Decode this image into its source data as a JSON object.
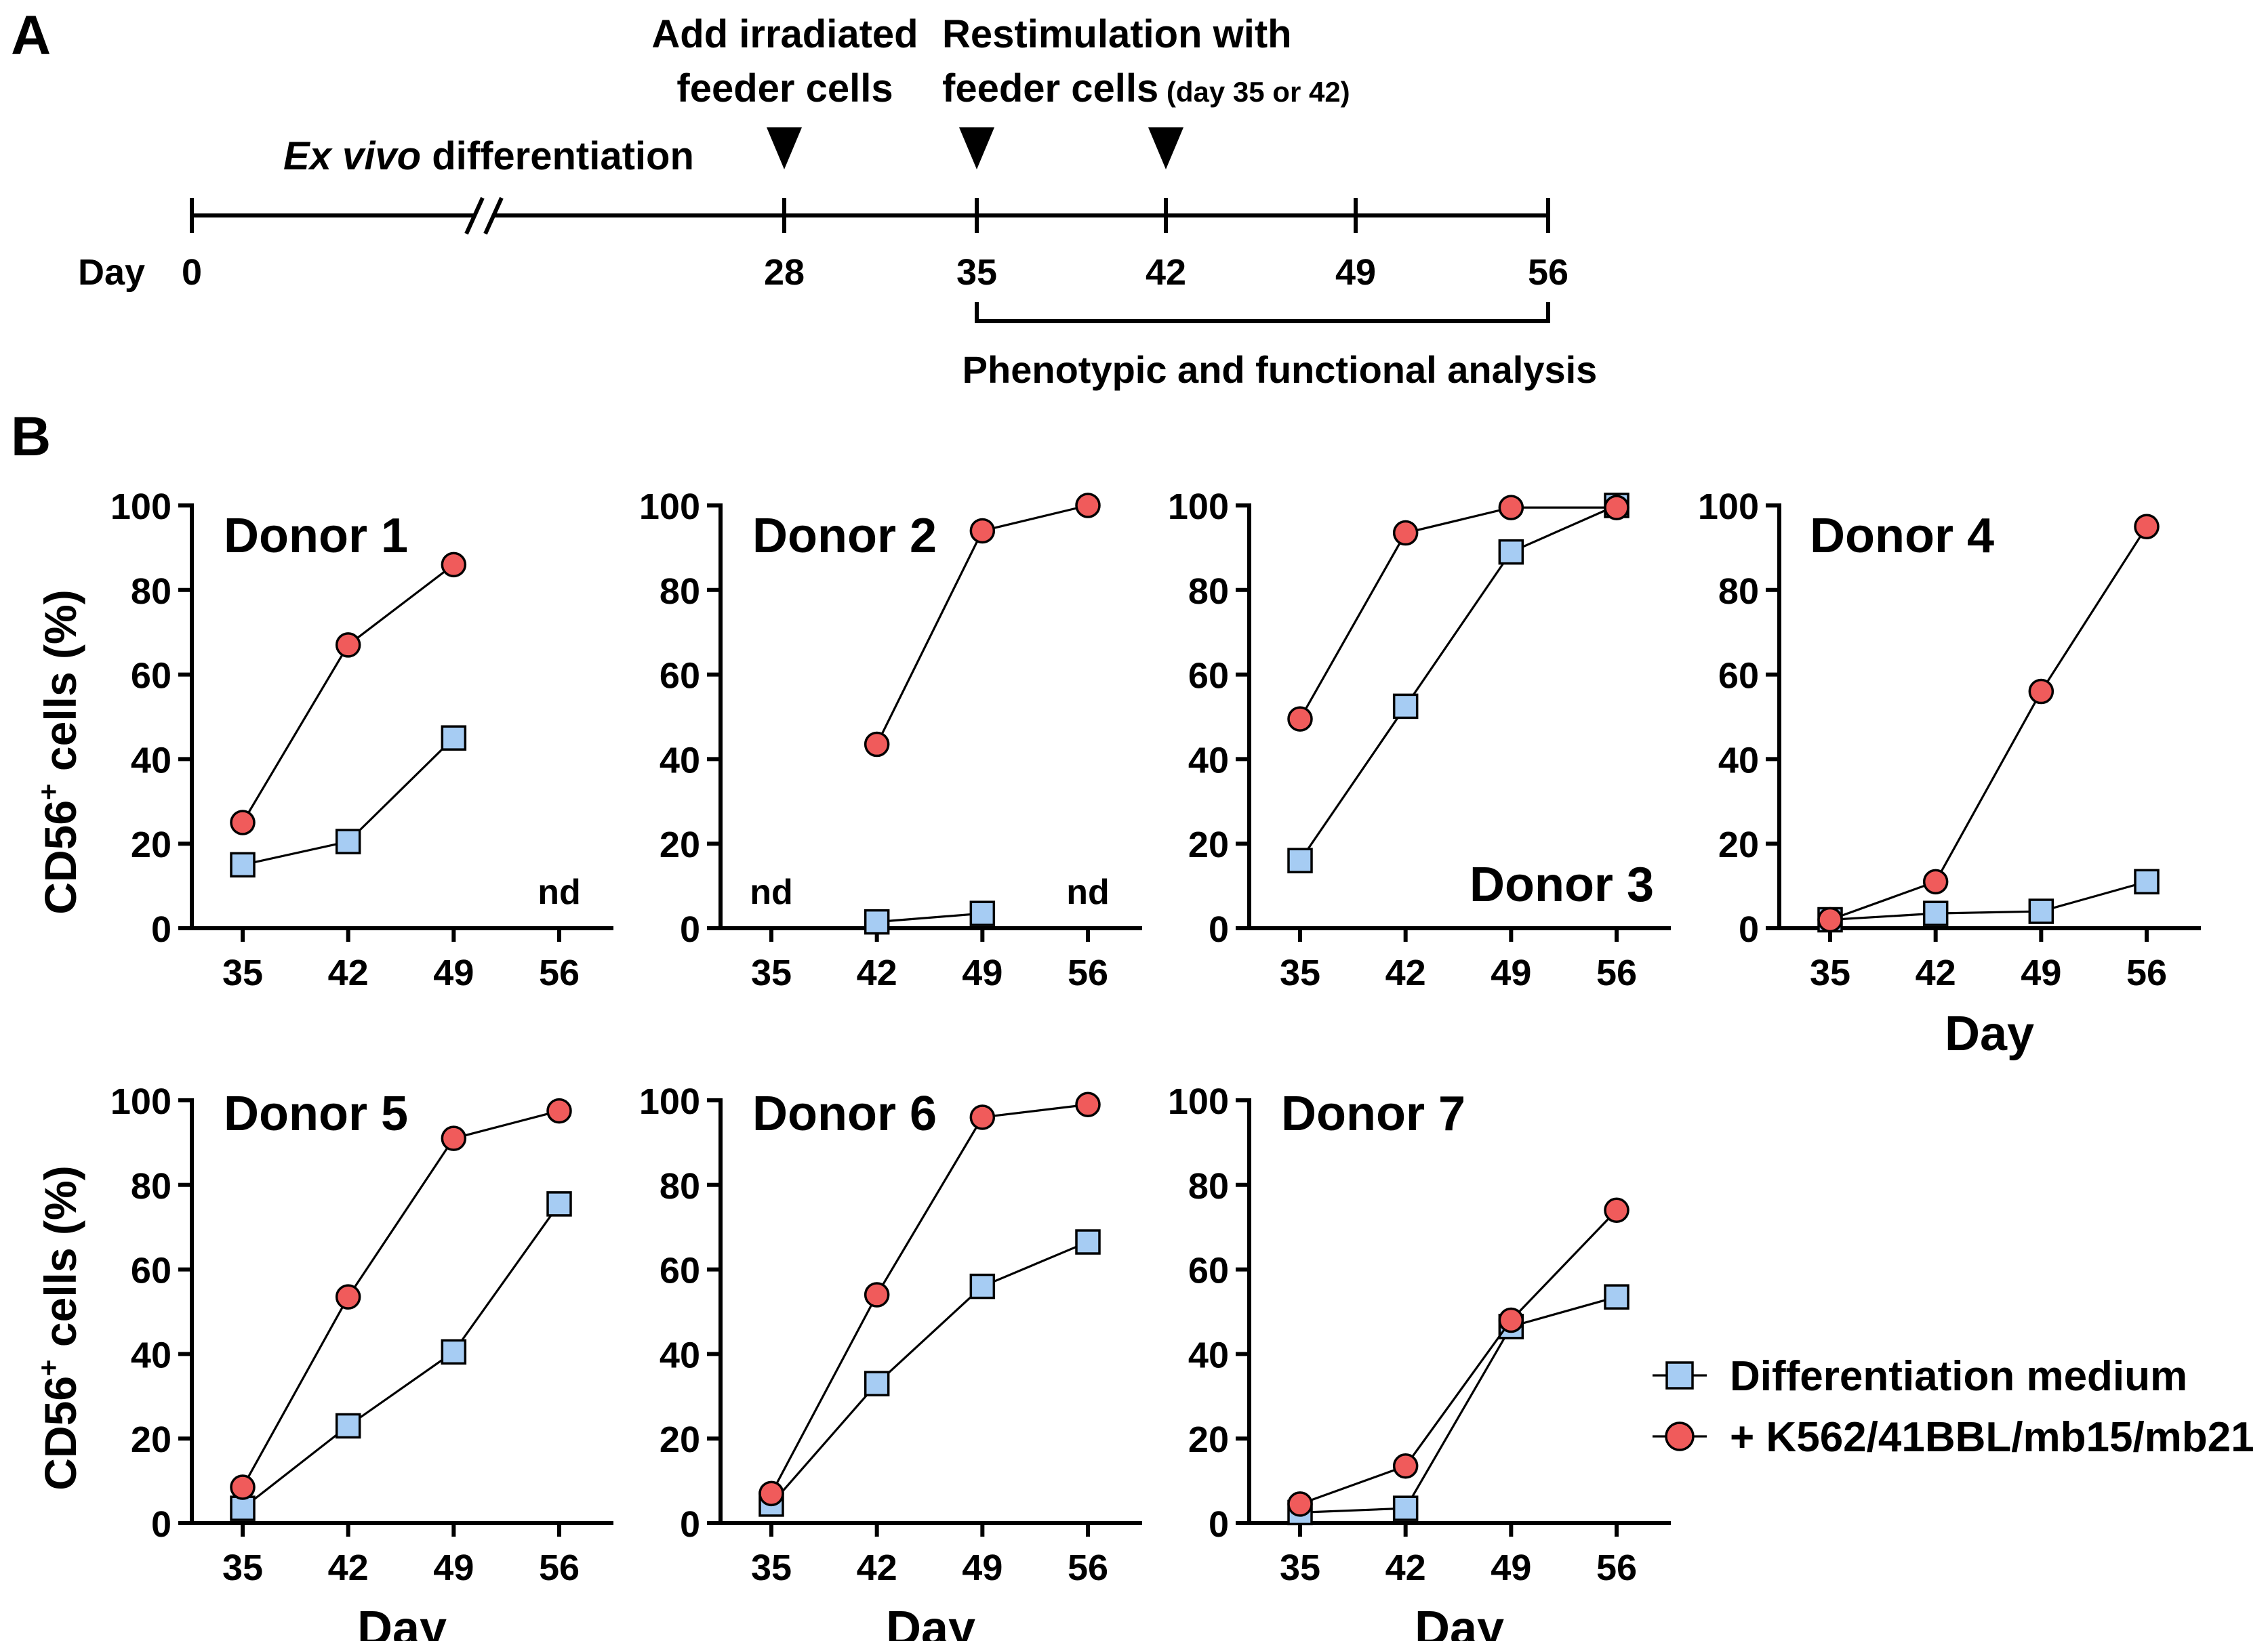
{
  "panel_a": {
    "label": "A",
    "day_label": "Day",
    "days": [
      "0",
      "28",
      "35",
      "42",
      "49",
      "56"
    ],
    "arrow_days": [
      28,
      35,
      42
    ],
    "bracket_days": [
      35,
      56
    ],
    "annotations": {
      "ex_vivo": "Ex vivo",
      "differentiation": " differentiation",
      "add_feeder_1": "Add irradiated",
      "add_feeder_2": "feeder cells",
      "restim_1": "Restimulation with",
      "restim_2": "feeder cells",
      "restim_note": " (day 35 or 42)",
      "analysis": "Phenotypic and functional analysis"
    }
  },
  "panel_b": {
    "label": "B",
    "nd_label": "nd",
    "ylabel_base": "CD56",
    "ylabel_sup": "+",
    "ylabel_rest": " cells  (%)"
  },
  "colors": {
    "medium": "#a6ccf3",
    "feeder": "#f05b5b"
  },
  "legend": {
    "medium": "Differentiation medium",
    "feeder": "+ K562/41BBL/mb15/mb21"
  },
  "chart_data": [
    {
      "type": "line",
      "title": "Donor 1",
      "xlabel": "",
      "ylabel": "CD56+ cells (%)",
      "x": [
        35,
        42,
        49,
        56
      ],
      "xlim": [
        35,
        56
      ],
      "ylim": [
        0,
        100
      ],
      "xticks": [
        "35",
        "42",
        "49",
        "56"
      ],
      "yticks": [
        "0",
        "20",
        "40",
        "60",
        "80",
        "100"
      ],
      "series": [
        {
          "name": "Differentiation medium",
          "values": [
            15,
            20.5,
            45,
            null
          ]
        },
        {
          "name": "+ K562/41BBL/mb15/mb21",
          "values": [
            25,
            67,
            86,
            null
          ]
        }
      ],
      "nd": [
        56
      ]
    },
    {
      "type": "line",
      "title": "Donor 2",
      "xlabel": "",
      "ylabel": "",
      "x": [
        35,
        42,
        49,
        56
      ],
      "xlim": [
        35,
        56
      ],
      "ylim": [
        0,
        100
      ],
      "xticks": [
        "35",
        "42",
        "49",
        "56"
      ],
      "yticks": [
        "0",
        "20",
        "40",
        "60",
        "80",
        "100"
      ],
      "series": [
        {
          "name": "Differentiation medium",
          "values": [
            null,
            1.5,
            3.5,
            null
          ]
        },
        {
          "name": "+ K562/41BBL/mb15/mb21",
          "values": [
            null,
            43.5,
            94,
            100
          ]
        }
      ],
      "nd": [
        35,
        56
      ]
    },
    {
      "type": "line",
      "title": "Donor 3",
      "xlabel": "",
      "ylabel": "",
      "x": [
        35,
        42,
        49,
        56
      ],
      "xlim": [
        35,
        56
      ],
      "ylim": [
        0,
        100
      ],
      "xticks": [
        "35",
        "42",
        "49",
        "56"
      ],
      "yticks": [
        "0",
        "20",
        "40",
        "60",
        "80",
        "100"
      ],
      "series": [
        {
          "name": "Differentiation medium",
          "values": [
            16,
            52.5,
            89,
            100
          ]
        },
        {
          "name": "+ K562/41BBL/mb15/mb21",
          "values": [
            49.5,
            93.5,
            99.5,
            99.5
          ]
        }
      ],
      "nd": []
    },
    {
      "type": "line",
      "title": "Donor 4",
      "xlabel": "Day",
      "ylabel": "",
      "x": [
        35,
        42,
        49,
        56
      ],
      "xlim": [
        35,
        56
      ],
      "ylim": [
        0,
        100
      ],
      "xticks": [
        "35",
        "42",
        "49",
        "56"
      ],
      "yticks": [
        "0",
        "20",
        "40",
        "60",
        "80",
        "100"
      ],
      "series": [
        {
          "name": "Differentiation medium",
          "values": [
            2,
            3.5,
            4,
            11
          ]
        },
        {
          "name": "+ K562/41BBL/mb15/mb21",
          "values": [
            2,
            11,
            56,
            95
          ]
        }
      ],
      "nd": []
    },
    {
      "type": "line",
      "title": "Donor 5",
      "xlabel": "Day",
      "ylabel": "CD56+ cells (%)",
      "x": [
        35,
        42,
        49,
        56
      ],
      "xlim": [
        35,
        56
      ],
      "ylim": [
        0,
        100
      ],
      "xticks": [
        "35",
        "42",
        "49",
        "56"
      ],
      "yticks": [
        "0",
        "20",
        "40",
        "60",
        "80",
        "100"
      ],
      "series": [
        {
          "name": "Differentiation medium",
          "values": [
            3.5,
            23,
            40.5,
            75.5
          ]
        },
        {
          "name": "+ K562/41BBL/mb15/mb21",
          "values": [
            8.5,
            53.5,
            91,
            97.5
          ]
        }
      ],
      "nd": []
    },
    {
      "type": "line",
      "title": "Donor 6",
      "xlabel": "Day",
      "ylabel": "",
      "x": [
        35,
        42,
        49,
        56
      ],
      "xlim": [
        35,
        56
      ],
      "ylim": [
        0,
        100
      ],
      "xticks": [
        "35",
        "42",
        "49",
        "56"
      ],
      "yticks": [
        "0",
        "20",
        "40",
        "60",
        "80",
        "100"
      ],
      "series": [
        {
          "name": "Differentiation medium",
          "values": [
            4.5,
            33,
            56,
            66.5
          ]
        },
        {
          "name": "+ K562/41BBL/mb15/mb21",
          "values": [
            7,
            54,
            96,
            99
          ]
        }
      ],
      "nd": []
    },
    {
      "type": "line",
      "title": "Donor 7",
      "xlabel": "Day",
      "ylabel": "",
      "x": [
        35,
        42,
        49,
        56
      ],
      "xlim": [
        35,
        56
      ],
      "ylim": [
        0,
        100
      ],
      "xticks": [
        "35",
        "42",
        "49",
        "56"
      ],
      "yticks": [
        "0",
        "20",
        "40",
        "60",
        "80",
        "100"
      ],
      "series": [
        {
          "name": "Differentiation medium",
          "values": [
            2.5,
            3.5,
            46.5,
            53.5
          ]
        },
        {
          "name": "+ K562/41BBL/mb15/mb21",
          "values": [
            4.5,
            13.5,
            48,
            74
          ]
        }
      ],
      "nd": []
    }
  ]
}
